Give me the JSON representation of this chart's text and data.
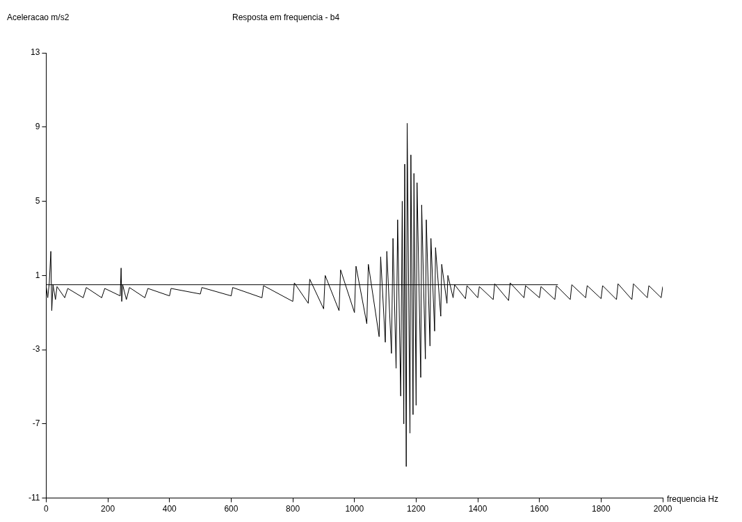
{
  "chart_data": {
    "type": "line",
    "title": "Resposta em frequencia - b4",
    "ylabel": "Aceleracao m/s2",
    "xlabel": "frequencia Hz",
    "xlim": [
      0,
      2000
    ],
    "xticks": [
      0,
      200,
      400,
      600,
      800,
      1000,
      1200,
      1400,
      1600,
      1800,
      2000
    ],
    "ylim": [
      -11,
      13
    ],
    "yticks": [
      -11,
      -7,
      -3,
      1,
      5,
      9,
      13
    ],
    "grid": false,
    "legend": false,
    "marker": "none",
    "line_style": "solid",
    "series": [
      {
        "color": "#000000",
        "x": [
          0,
          5,
          10,
          15,
          18,
          22,
          30,
          35,
          60,
          70,
          120,
          130,
          180,
          190,
          240,
          243,
          245,
          248,
          260,
          270,
          320,
          330,
          400,
          405,
          500,
          505,
          600,
          605,
          700,
          705,
          800,
          805,
          850,
          855,
          900,
          905,
          950,
          955,
          1000,
          1005,
          1040,
          1045,
          1080,
          1085,
          1100,
          1105,
          1120,
          1125,
          1135,
          1140,
          1150,
          1155,
          1160,
          1163,
          1168,
          1171,
          1180,
          1183,
          1190,
          1193,
          1200,
          1203,
          1215,
          1218,
          1230,
          1233,
          1245,
          1248,
          1260,
          1263,
          1280,
          1283,
          1300,
          1303,
          1320,
          1325,
          1360,
          1365,
          1400,
          1405,
          1450,
          1455,
          1500,
          1505,
          1550,
          1555,
          1600,
          1605,
          1650,
          1655,
          1700,
          1705,
          1750,
          1755,
          1800,
          1805,
          1850,
          1855,
          1900,
          1905,
          1950,
          1955,
          1995,
          2000
        ],
        "values": [
          0.4,
          -0.2,
          0.6,
          2.3,
          -0.9,
          0.5,
          -0.3,
          0.4,
          -0.2,
          0.3,
          -0.2,
          0.35,
          -0.2,
          0.3,
          -0.1,
          1.4,
          -0.4,
          0.5,
          -0.3,
          0.35,
          -0.2,
          0.3,
          -0.1,
          0.3,
          0.0,
          0.35,
          -0.1,
          0.35,
          -0.2,
          0.45,
          -0.4,
          0.6,
          -0.5,
          0.8,
          -0.8,
          1.0,
          -0.9,
          1.3,
          -1.0,
          1.5,
          -1.6,
          1.6,
          -2.3,
          2.0,
          -2.6,
          2.3,
          -3.2,
          3.0,
          -4.0,
          4.0,
          -5.5,
          5.0,
          -7.0,
          7.0,
          -9.3,
          9.2,
          -7.5,
          7.5,
          -6.5,
          6.5,
          -6.0,
          6.0,
          -4.5,
          4.8,
          -3.5,
          4.0,
          -2.8,
          3.0,
          -2.0,
          2.5,
          -1.2,
          1.6,
          -0.5,
          1.0,
          -0.2,
          0.5,
          -0.25,
          0.45,
          -0.2,
          0.4,
          -0.3,
          0.55,
          -0.35,
          0.6,
          -0.2,
          0.45,
          -0.2,
          0.4,
          -0.3,
          0.45,
          -0.3,
          0.5,
          -0.2,
          0.45,
          -0.25,
          0.45,
          -0.3,
          0.55,
          -0.3,
          0.55,
          -0.2,
          0.45,
          -0.2,
          0.4
        ]
      },
      {
        "color": "#000000",
        "x": [
          0,
          1660
        ],
        "values": [
          0.5,
          0.5
        ]
      }
    ]
  }
}
